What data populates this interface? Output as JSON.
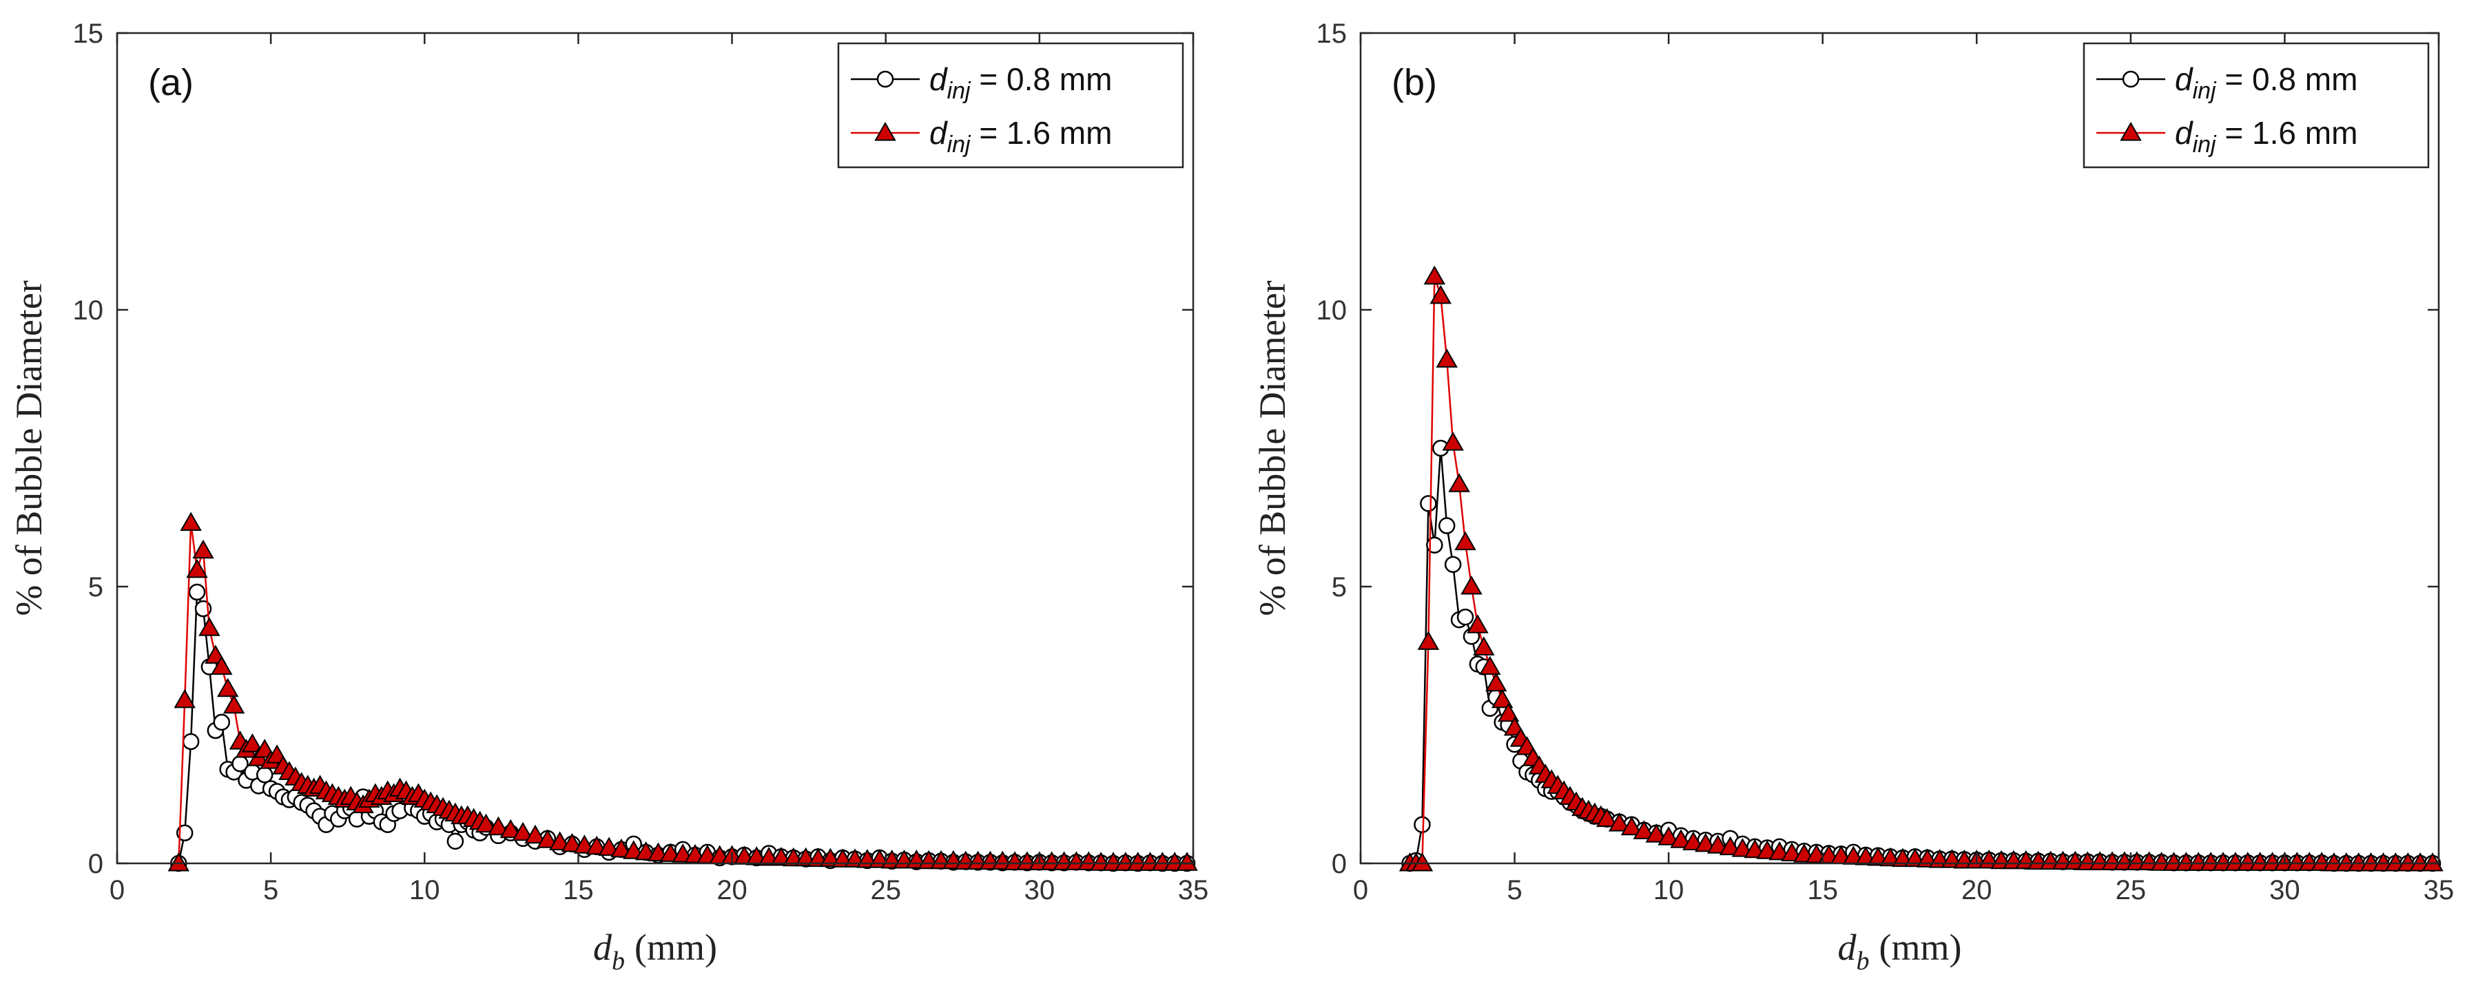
{
  "colors": {
    "series_small": "#000000",
    "series_large": "#e00000",
    "marker_fill_large": "#cc0000",
    "axes": "#262626"
  },
  "chart_data": [
    {
      "type": "line",
      "panel_label": "(a)",
      "xlabel_symbol": "d",
      "xlabel_subscript": "b",
      "xlabel_unit": "(mm)",
      "ylabel": "% of Bubble Diameter",
      "xlim": [
        0,
        35
      ],
      "ylim": [
        0,
        15
      ],
      "xticks": [
        0,
        5,
        10,
        15,
        20,
        25,
        30,
        35
      ],
      "yticks": [
        0,
        5,
        10,
        15
      ],
      "legend_position": "top-right",
      "series": [
        {
          "name_symbol": "d",
          "name_subscript": "inj",
          "name_rest": " = 0.8 mm",
          "marker": "open-circle",
          "x": [
            2.0,
            2.2,
            2.4,
            2.6,
            2.8,
            3.0,
            3.2,
            3.4,
            3.6,
            3.8,
            4.0,
            4.2,
            4.4,
            4.6,
            4.8,
            5.0,
            5.2,
            5.4,
            5.6,
            5.8,
            6.0,
            6.2,
            6.4,
            6.6,
            6.8,
            7.0,
            7.2,
            7.4,
            7.6,
            7.8,
            8.0,
            8.2,
            8.4,
            8.6,
            8.8,
            9.0,
            9.2,
            9.4,
            9.6,
            9.8,
            10.0,
            10.2,
            10.4,
            10.6,
            10.8,
            11.0,
            11.2,
            11.4,
            11.6,
            11.8,
            12.0,
            12.4,
            12.8,
            13.2,
            13.6,
            14.0,
            14.4,
            14.8,
            15.2,
            15.6,
            16.0,
            16.4,
            16.8,
            17.2,
            17.6,
            18.0,
            18.4,
            18.8,
            19.2,
            19.6,
            20.0,
            20.4,
            20.8,
            21.2,
            21.6,
            22.0,
            22.4,
            22.8,
            23.2,
            23.6,
            24.0,
            24.4,
            24.8,
            25.2,
            25.6,
            26.0,
            26.4,
            26.8,
            27.2,
            27.6,
            28.0,
            28.4,
            28.8,
            29.2,
            29.6,
            30.0,
            30.4,
            30.8,
            31.2,
            31.6,
            32.0,
            32.4,
            32.8,
            33.2,
            33.6,
            34.0,
            34.4,
            34.8
          ],
          "y": [
            0,
            0.55,
            2.2,
            4.9,
            4.6,
            3.55,
            2.4,
            2.55,
            1.7,
            1.65,
            1.8,
            1.5,
            1.65,
            1.4,
            1.6,
            1.35,
            1.3,
            1.2,
            1.15,
            1.2,
            1.1,
            1.05,
            0.95,
            0.85,
            0.7,
            0.9,
            0.8,
            0.95,
            1.0,
            0.8,
            1.2,
            0.85,
            0.95,
            0.75,
            0.7,
            0.9,
            0.95,
            1.2,
            1.0,
            0.95,
            0.85,
            0.9,
            0.75,
            0.8,
            0.7,
            0.4,
            0.7,
            0.75,
            0.6,
            0.55,
            0.65,
            0.5,
            0.55,
            0.45,
            0.4,
            0.45,
            0.3,
            0.35,
            0.25,
            0.3,
            0.2,
            0.25,
            0.35,
            0.2,
            0.15,
            0.2,
            0.25,
            0.15,
            0.2,
            0.1,
            0.12,
            0.15,
            0.1,
            0.18,
            0.12,
            0.1,
            0.08,
            0.12,
            0.05,
            0.1,
            0.08,
            0.05,
            0.1,
            0.04,
            0.06,
            0.03,
            0.05,
            0.04,
            0.02,
            0.03,
            0.02,
            0.02,
            0.01,
            0.02,
            0.01,
            0.02,
            0.01,
            0.01,
            0.02,
            0.01,
            0.01,
            0.0,
            0.01,
            0.0,
            0.01,
            0.0,
            0.0,
            0.0
          ]
        },
        {
          "name_symbol": "d",
          "name_subscript": "inj",
          "name_rest": " = 1.6 mm",
          "marker": "filled-triangle",
          "x": [
            2.0,
            2.2,
            2.4,
            2.6,
            2.8,
            3.0,
            3.2,
            3.4,
            3.6,
            3.8,
            4.0,
            4.2,
            4.4,
            4.6,
            4.8,
            5.0,
            5.2,
            5.4,
            5.6,
            5.8,
            6.0,
            6.2,
            6.4,
            6.6,
            6.8,
            7.0,
            7.2,
            7.4,
            7.6,
            7.8,
            8.0,
            8.2,
            8.4,
            8.6,
            8.8,
            9.0,
            9.2,
            9.4,
            9.6,
            9.8,
            10.0,
            10.2,
            10.4,
            10.6,
            10.8,
            11.0,
            11.2,
            11.4,
            11.6,
            11.8,
            12.0,
            12.4,
            12.8,
            13.2,
            13.6,
            14.0,
            14.4,
            14.8,
            15.2,
            15.6,
            16.0,
            16.4,
            16.8,
            17.2,
            17.6,
            18.0,
            18.4,
            18.8,
            19.2,
            19.6,
            20.0,
            20.4,
            20.8,
            21.2,
            21.6,
            22.0,
            22.4,
            22.8,
            23.2,
            23.6,
            24.0,
            24.4,
            24.8,
            25.2,
            25.6,
            26.0,
            26.4,
            26.8,
            27.2,
            27.6,
            28.0,
            28.4,
            28.8,
            29.2,
            29.6,
            30.0,
            30.4,
            30.8,
            31.2,
            31.6,
            32.0,
            32.4,
            32.8,
            33.2,
            33.6,
            34.0,
            34.4,
            34.8
          ],
          "y": [
            0,
            2.95,
            6.15,
            5.3,
            5.65,
            4.25,
            3.75,
            3.55,
            3.15,
            2.85,
            2.2,
            2.05,
            2.15,
            1.9,
            2.05,
            1.85,
            1.95,
            1.75,
            1.65,
            1.55,
            1.45,
            1.4,
            1.35,
            1.4,
            1.3,
            1.25,
            1.2,
            1.15,
            1.2,
            1.1,
            1.05,
            1.15,
            1.25,
            1.2,
            1.3,
            1.25,
            1.35,
            1.3,
            1.2,
            1.25,
            1.15,
            1.1,
            1.05,
            1.0,
            0.95,
            0.9,
            0.85,
            0.85,
            0.8,
            0.75,
            0.7,
            0.65,
            0.6,
            0.55,
            0.5,
            0.42,
            0.38,
            0.35,
            0.32,
            0.3,
            0.28,
            0.25,
            0.22,
            0.2,
            0.18,
            0.17,
            0.16,
            0.15,
            0.14,
            0.13,
            0.13,
            0.12,
            0.11,
            0.1,
            0.1,
            0.09,
            0.09,
            0.08,
            0.08,
            0.07,
            0.07,
            0.06,
            0.06,
            0.05,
            0.05,
            0.05,
            0.04,
            0.04,
            0.04,
            0.03,
            0.03,
            0.03,
            0.03,
            0.02,
            0.02,
            0.02,
            0.02,
            0.02,
            0.02,
            0.02,
            0.01,
            0.01,
            0.01,
            0.01,
            0.01,
            0.01,
            0.01,
            0.01
          ]
        }
      ]
    },
    {
      "type": "line",
      "panel_label": "(b)",
      "xlabel_symbol": "d",
      "xlabel_subscript": "b",
      "xlabel_unit": "(mm)",
      "ylabel": "% of Bubble Diameter",
      "xlim": [
        0,
        35
      ],
      "ylim": [
        0,
        15
      ],
      "xticks": [
        0,
        5,
        10,
        15,
        20,
        25,
        30,
        35
      ],
      "yticks": [
        0,
        5,
        10,
        15
      ],
      "legend_position": "top-right",
      "series": [
        {
          "name_symbol": "d",
          "name_subscript": "inj",
          "name_rest": " = 0.8 mm",
          "marker": "open-circle",
          "x": [
            1.6,
            1.8,
            2.0,
            2.2,
            2.4,
            2.6,
            2.8,
            3.0,
            3.2,
            3.4,
            3.6,
            3.8,
            4.0,
            4.2,
            4.4,
            4.6,
            4.8,
            5.0,
            5.2,
            5.4,
            5.6,
            5.8,
            6.0,
            6.2,
            6.4,
            6.6,
            6.8,
            7.0,
            7.2,
            7.4,
            7.6,
            7.8,
            8.0,
            8.4,
            8.8,
            9.2,
            9.6,
            10.0,
            10.4,
            10.8,
            11.2,
            11.6,
            12.0,
            12.4,
            12.8,
            13.2,
            13.6,
            14.0,
            14.4,
            14.8,
            15.2,
            15.6,
            16.0,
            16.4,
            16.8,
            17.2,
            17.6,
            18.0,
            18.4,
            18.8,
            19.2,
            19.6,
            20.0,
            20.4,
            20.8,
            21.2,
            21.6,
            22.0,
            22.4,
            22.8,
            23.2,
            23.6,
            24.0,
            24.4,
            24.8,
            25.2,
            25.6,
            26.0,
            26.4,
            26.8,
            27.2,
            27.6,
            28.0,
            28.4,
            28.8,
            29.2,
            29.6,
            30.0,
            30.4,
            30.8,
            31.2,
            31.6,
            32.0,
            32.4,
            32.8,
            33.2,
            33.6,
            34.0,
            34.4,
            34.8
          ],
          "y": [
            0,
            0.05,
            0.7,
            6.5,
            5.75,
            7.5,
            6.1,
            5.4,
            4.4,
            4.45,
            4.1,
            3.6,
            3.55,
            2.8,
            3.0,
            2.55,
            2.5,
            2.15,
            1.85,
            1.65,
            1.6,
            1.5,
            1.35,
            1.3,
            1.3,
            1.2,
            1.1,
            1.05,
            0.95,
            0.9,
            0.85,
            0.85,
            0.8,
            0.75,
            0.7,
            0.6,
            0.55,
            0.6,
            0.5,
            0.45,
            0.42,
            0.4,
            0.45,
            0.35,
            0.3,
            0.28,
            0.3,
            0.25,
            0.22,
            0.2,
            0.18,
            0.17,
            0.2,
            0.15,
            0.14,
            0.12,
            0.1,
            0.12,
            0.1,
            0.08,
            0.08,
            0.07,
            0.06,
            0.06,
            0.05,
            0.05,
            0.04,
            0.04,
            0.04,
            0.03,
            0.03,
            0.03,
            0.03,
            0.02,
            0.02,
            0.02,
            0.02,
            0.02,
            0.01,
            0.01,
            0.01,
            0.01,
            0.01,
            0.01,
            0.01,
            0.01,
            0.01,
            0.01,
            0.01,
            0.01,
            0.01,
            0.0,
            0.0,
            0.0,
            0.0,
            0.0,
            0.0,
            0.0,
            0.0,
            0.0
          ]
        },
        {
          "name_symbol": "d",
          "name_subscript": "inj",
          "name_rest": " = 1.6 mm",
          "marker": "filled-triangle",
          "x": [
            1.6,
            1.8,
            2.0,
            2.2,
            2.4,
            2.6,
            2.8,
            3.0,
            3.2,
            3.4,
            3.6,
            3.8,
            4.0,
            4.2,
            4.4,
            4.6,
            4.8,
            5.0,
            5.2,
            5.4,
            5.6,
            5.8,
            6.0,
            6.2,
            6.4,
            6.6,
            6.8,
            7.0,
            7.2,
            7.4,
            7.6,
            7.8,
            8.0,
            8.4,
            8.8,
            9.2,
            9.6,
            10.0,
            10.4,
            10.8,
            11.2,
            11.6,
            12.0,
            12.4,
            12.8,
            13.2,
            13.6,
            14.0,
            14.4,
            14.8,
            15.2,
            15.6,
            16.0,
            16.4,
            16.8,
            17.2,
            17.6,
            18.0,
            18.4,
            18.8,
            19.2,
            19.6,
            20.0,
            20.4,
            20.8,
            21.2,
            21.6,
            22.0,
            22.4,
            22.8,
            23.2,
            23.6,
            24.0,
            24.4,
            24.8,
            25.2,
            25.6,
            26.0,
            26.4,
            26.8,
            27.2,
            27.6,
            28.0,
            28.4,
            28.8,
            29.2,
            29.6,
            30.0,
            30.4,
            30.8,
            31.2,
            31.6,
            32.0,
            32.4,
            32.8,
            33.2,
            33.6,
            34.0,
            34.4,
            34.8
          ],
          "y": [
            0,
            0,
            0,
            4.0,
            10.6,
            10.25,
            9.1,
            7.6,
            6.85,
            5.8,
            5.0,
            4.3,
            3.9,
            3.55,
            3.25,
            2.95,
            2.7,
            2.45,
            2.25,
            2.1,
            1.9,
            1.75,
            1.6,
            1.5,
            1.4,
            1.3,
            1.2,
            1.1,
            1.0,
            0.95,
            0.9,
            0.85,
            0.8,
            0.72,
            0.65,
            0.58,
            0.52,
            0.47,
            0.42,
            0.38,
            0.35,
            0.32,
            0.29,
            0.26,
            0.24,
            0.22,
            0.2,
            0.18,
            0.16,
            0.15,
            0.14,
            0.13,
            0.12,
            0.11,
            0.1,
            0.09,
            0.08,
            0.08,
            0.07,
            0.06,
            0.06,
            0.05,
            0.05,
            0.05,
            0.04,
            0.04,
            0.04,
            0.03,
            0.03,
            0.03,
            0.03,
            0.02,
            0.02,
            0.02,
            0.02,
            0.02,
            0.02,
            0.01,
            0.01,
            0.01,
            0.01,
            0.01,
            0.01,
            0.01,
            0.01,
            0.01,
            0.01,
            0.01,
            0.01,
            0.01,
            0.01,
            0.0,
            0.0,
            0.0,
            0.0,
            0.0,
            0.0,
            0.0,
            0.0,
            0.0
          ]
        }
      ]
    }
  ]
}
